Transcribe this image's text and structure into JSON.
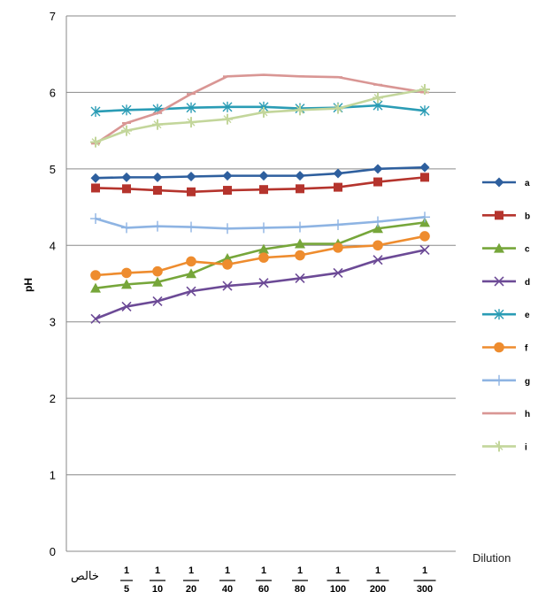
{
  "chart_data": {
    "type": "line",
    "title": "",
    "xlabel": "Dilution",
    "ylabel": "pH",
    "ylim": [
      0,
      7
    ],
    "yticks": [
      "0",
      "1",
      "2",
      "3",
      "4",
      "5",
      "6",
      "7"
    ],
    "grid": "horizontal",
    "legend_position": "right",
    "categories": [
      {
        "num": "",
        "den": "",
        "text": "خالص"
      },
      {
        "num": "1",
        "den": "5",
        "text": ""
      },
      {
        "num": "1",
        "den": "10",
        "text": ""
      },
      {
        "num": "1",
        "den": "20",
        "text": ""
      },
      {
        "num": "1",
        "den": "40",
        "text": ""
      },
      {
        "num": "1",
        "den": "60",
        "text": ""
      },
      {
        "num": "1",
        "den": "80",
        "text": ""
      },
      {
        "num": "1",
        "den": "100",
        "text": ""
      },
      {
        "num": "1",
        "den": "200",
        "text": ""
      },
      {
        "num": "1",
        "den": "300",
        "text": ""
      }
    ],
    "series": [
      {
        "name": "a",
        "color": "#2E5F9E",
        "marker": "diamond",
        "values": [
          4.88,
          4.89,
          4.89,
          4.9,
          4.91,
          4.91,
          4.91,
          4.94,
          5.0,
          5.02
        ]
      },
      {
        "name": "b",
        "color": "#B5342D",
        "marker": "square",
        "values": [
          4.75,
          4.74,
          4.72,
          4.7,
          4.72,
          4.73,
          4.74,
          4.76,
          4.83,
          4.89
        ]
      },
      {
        "name": "c",
        "color": "#76A63A",
        "marker": "triangle",
        "values": [
          3.44,
          3.49,
          3.52,
          3.63,
          3.83,
          3.95,
          4.02,
          4.02,
          4.22,
          4.3
        ]
      },
      {
        "name": "d",
        "color": "#6C4A96",
        "marker": "x",
        "values": [
          3.04,
          3.2,
          3.27,
          3.4,
          3.47,
          3.51,
          3.57,
          3.64,
          3.81,
          3.94
        ]
      },
      {
        "name": "e",
        "color": "#2A9CB5",
        "marker": "star",
        "values": [
          5.75,
          5.77,
          5.78,
          5.8,
          5.81,
          5.81,
          5.79,
          5.8,
          5.83,
          5.76
        ]
      },
      {
        "name": "f",
        "color": "#EE8C2E",
        "marker": "circle",
        "values": [
          3.61,
          3.64,
          3.66,
          3.79,
          3.75,
          3.84,
          3.87,
          3.97,
          4.0,
          4.12
        ]
      },
      {
        "name": "g",
        "color": "#8EB4E3",
        "marker": "plus",
        "values": [
          4.35,
          4.23,
          4.25,
          4.24,
          4.22,
          4.23,
          4.24,
          4.27,
          4.31,
          4.37
        ]
      },
      {
        "name": "h",
        "color": "#D99694",
        "marker": "dash",
        "values": [
          5.33,
          5.6,
          5.73,
          5.98,
          6.21,
          6.23,
          6.21,
          6.2,
          6.1,
          6.0
        ]
      },
      {
        "name": "i",
        "color": "#C3D69B",
        "marker": "plusx",
        "values": [
          5.35,
          5.5,
          5.58,
          5.61,
          5.65,
          5.74,
          5.77,
          5.79,
          5.93,
          6.04
        ]
      }
    ]
  }
}
